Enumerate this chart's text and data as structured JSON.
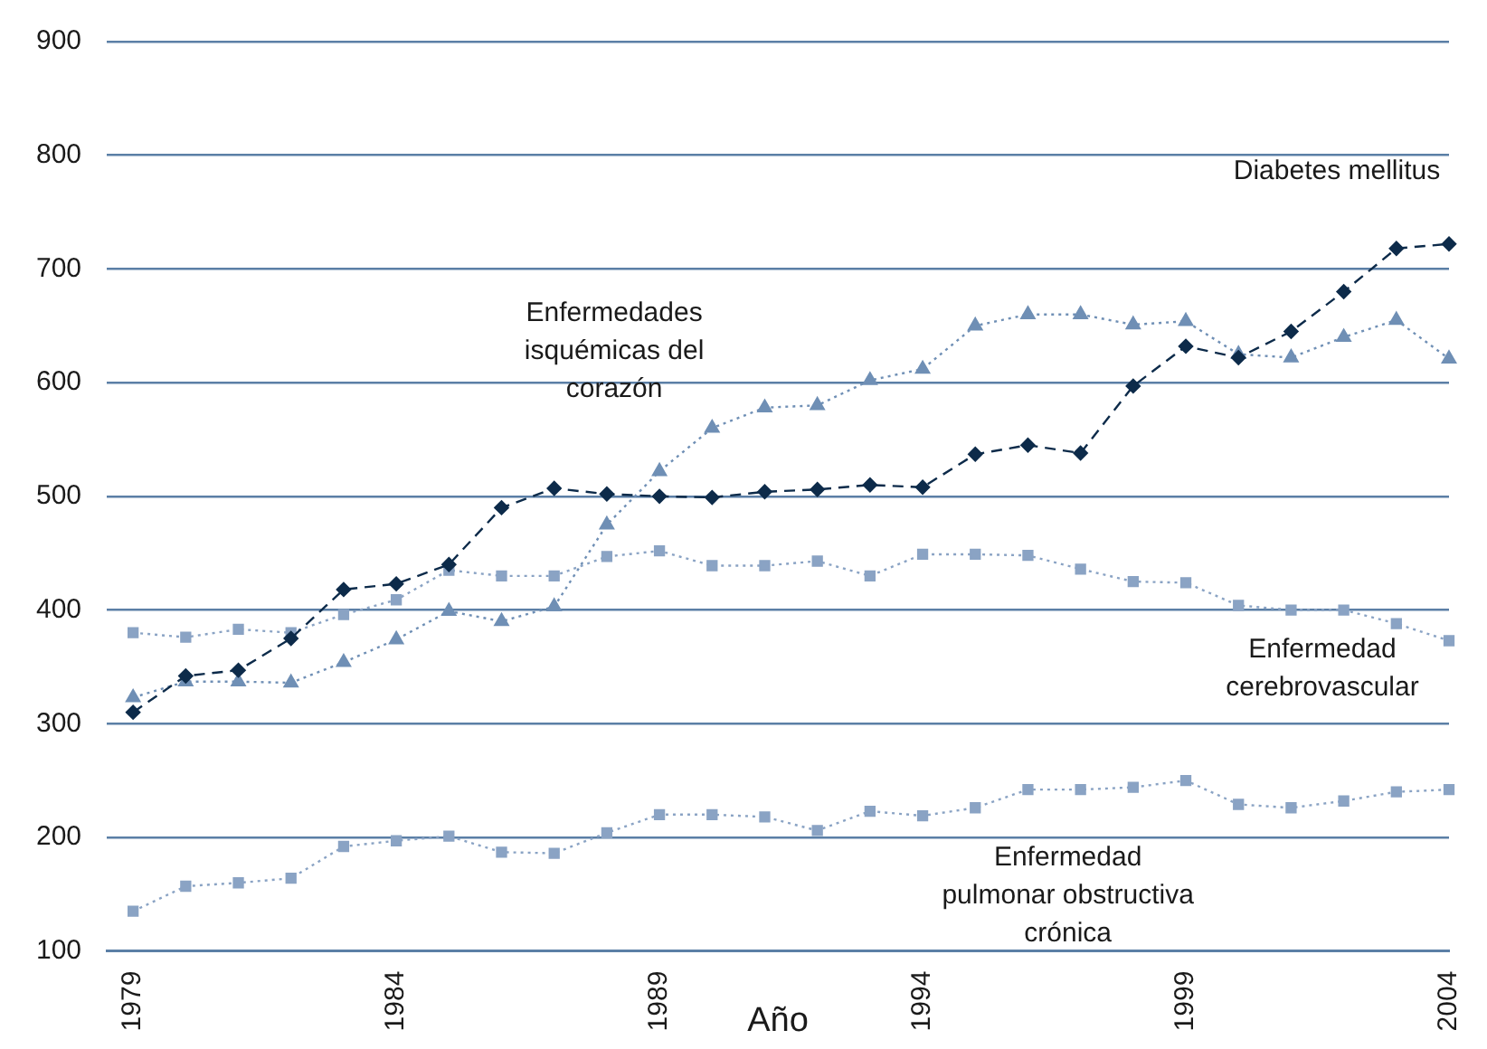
{
  "chart_data": {
    "type": "line",
    "xlabel": "Año",
    "x": [
      1979,
      1980,
      1981,
      1982,
      1983,
      1984,
      1985,
      1986,
      1987,
      1988,
      1989,
      1990,
      1991,
      1992,
      1993,
      1994,
      1995,
      1996,
      1997,
      1998,
      1999,
      2000,
      2001,
      2002,
      2003,
      2004
    ],
    "series": [
      {
        "name": "Diabetes mellitus",
        "color": "#0d2b4a",
        "marker": "diamond",
        "line_style": "dashed",
        "values": [
          310,
          342,
          347,
          375,
          418,
          423,
          440,
          490,
          507,
          502,
          500,
          499,
          504,
          506,
          510,
          508,
          537,
          545,
          538,
          597,
          632,
          622,
          645,
          680,
          718,
          722
        ]
      },
      {
        "name": "Enfermedades isquémicas del corazón",
        "color": "#6f8fb5",
        "marker": "triangle",
        "line_style": "dotted",
        "values": [
          323,
          337,
          337,
          336,
          354,
          374,
          399,
          390,
          403,
          475,
          522,
          560,
          578,
          580,
          602,
          612,
          650,
          660,
          660,
          651,
          654,
          625,
          622,
          640,
          655,
          621
        ]
      },
      {
        "name": "Enfermedad cerebrovascular",
        "color": "#8aa3c4",
        "marker": "square",
        "line_style": "dotted",
        "values": [
          380,
          376,
          383,
          380,
          396,
          409,
          435,
          430,
          430,
          447,
          452,
          439,
          439,
          443,
          430,
          449,
          449,
          448,
          436,
          425,
          424,
          404,
          400,
          400,
          388,
          373
        ]
      },
      {
        "name": "Enfermedad pulmonar obstructiva crónica",
        "color": "#8aa3c4",
        "marker": "square",
        "line_style": "dotted",
        "values": [
          135,
          157,
          160,
          164,
          192,
          197,
          201,
          187,
          186,
          204,
          220,
          220,
          218,
          206,
          223,
          219,
          226,
          242,
          242,
          244,
          250,
          229,
          226,
          232,
          240,
          242
        ]
      }
    ],
    "xlim": [
      1978.5,
      2004
    ],
    "xticks": [
      1979,
      1984,
      1989,
      1994,
      1999,
      2004
    ],
    "ylim": [
      100,
      900
    ],
    "yticks": [
      100,
      200,
      300,
      400,
      500,
      600,
      700,
      800,
      900
    ],
    "grid": "y",
    "legend": false
  }
}
